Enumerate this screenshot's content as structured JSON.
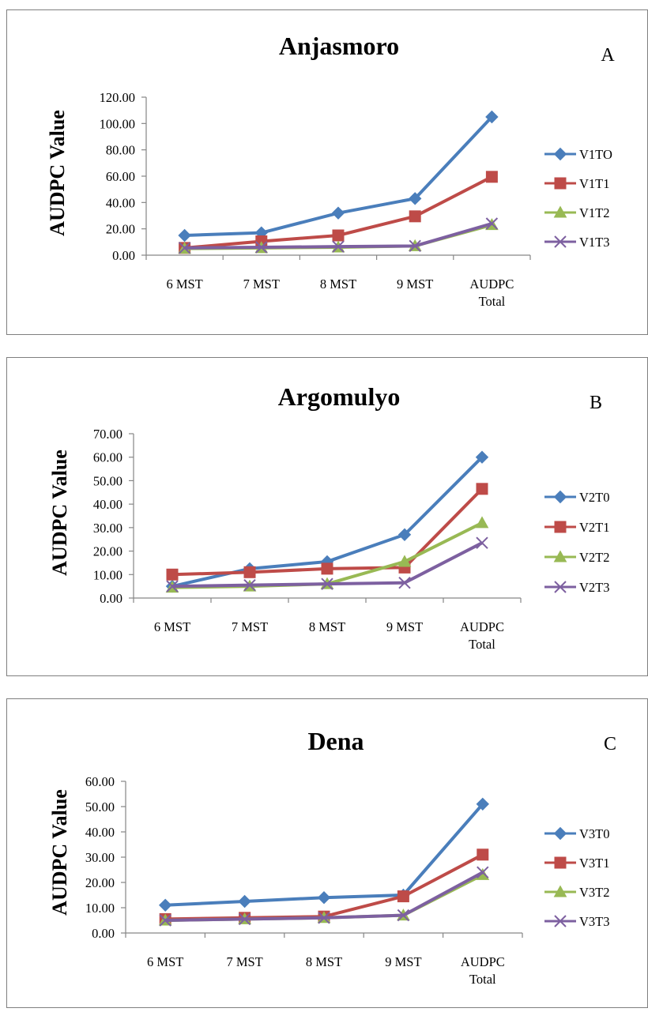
{
  "colors": {
    "T0": "#4a7ebb",
    "T1": "#be4b48",
    "T2": "#98b954",
    "T3": "#7d60a0"
  },
  "chart_data": [
    {
      "type": "line",
      "title": "Anjasmoro",
      "panel_letter": "A",
      "ylabel": "AUDPC Value",
      "xlabel": "",
      "categories": [
        [
          "6 MST"
        ],
        [
          "7 MST"
        ],
        [
          "8 MST"
        ],
        [
          "9 MST"
        ],
        [
          "AUDPC",
          "Total"
        ]
      ],
      "yticks": [
        "0.00",
        "20.00",
        "40.00",
        "60.00",
        "80.00",
        "100.00",
        "120.00"
      ],
      "ylim": [
        0,
        120
      ],
      "grid": false,
      "legend_position": "right",
      "series": [
        {
          "name": "V1TO",
          "marker": "diamond",
          "values": [
            15.0,
            17.0,
            32.0,
            43.0,
            105.0
          ]
        },
        {
          "name": "V1T1",
          "marker": "square",
          "values": [
            5.5,
            10.5,
            15.0,
            29.5,
            59.5
          ]
        },
        {
          "name": "V1T2",
          "marker": "triangle",
          "values": [
            5.0,
            5.5,
            6.0,
            7.0,
            23.0
          ]
        },
        {
          "name": "V1T3",
          "marker": "x",
          "values": [
            5.5,
            6.0,
            6.5,
            7.0,
            24.0
          ]
        }
      ]
    },
    {
      "type": "line",
      "title": "Argomulyo",
      "panel_letter": "B",
      "ylabel": "AUDPC Value",
      "xlabel": "",
      "categories": [
        [
          "6 MST"
        ],
        [
          "7 MST"
        ],
        [
          "8 MST"
        ],
        [
          "9 MST"
        ],
        [
          "AUDPC",
          "Total"
        ]
      ],
      "yticks": [
        "0.00",
        "10.00",
        "20.00",
        "30.00",
        "40.00",
        "50.00",
        "60.00",
        "70.00"
      ],
      "ylim": [
        0,
        70
      ],
      "grid": false,
      "legend_position": "right",
      "series": [
        {
          "name": "V2T0",
          "marker": "diamond",
          "values": [
            5.0,
            12.5,
            15.5,
            27.0,
            60.0
          ]
        },
        {
          "name": "V2T1",
          "marker": "square",
          "values": [
            10.0,
            11.0,
            12.5,
            13.0,
            46.5
          ]
        },
        {
          "name": "V2T2",
          "marker": "triangle",
          "values": [
            4.5,
            5.0,
            6.0,
            15.5,
            32.0
          ]
        },
        {
          "name": "V2T3",
          "marker": "x",
          "values": [
            5.0,
            5.5,
            6.0,
            6.5,
            23.5
          ]
        }
      ]
    },
    {
      "type": "line",
      "title": "Dena",
      "panel_letter": "C",
      "ylabel": "AUDPC Value",
      "xlabel": "",
      "categories": [
        [
          "6 MST"
        ],
        [
          "7 MST"
        ],
        [
          "8 MST"
        ],
        [
          "9 MST"
        ],
        [
          "AUDPC",
          "Total"
        ]
      ],
      "yticks": [
        "0.00",
        "10.00",
        "20.00",
        "30.00",
        "40.00",
        "50.00",
        "60.00"
      ],
      "ylim": [
        0,
        60
      ],
      "grid": false,
      "legend_position": "right",
      "series": [
        {
          "name": "V3T0",
          "marker": "diamond",
          "values": [
            11.0,
            12.5,
            14.0,
            15.0,
            51.0
          ]
        },
        {
          "name": "V3T1",
          "marker": "square",
          "values": [
            5.5,
            6.0,
            6.5,
            14.5,
            31.0
          ]
        },
        {
          "name": "V3T2",
          "marker": "triangle",
          "values": [
            5.0,
            5.5,
            6.0,
            7.0,
            23.0
          ]
        },
        {
          "name": "V3T3",
          "marker": "x",
          "values": [
            5.0,
            5.5,
            6.0,
            7.0,
            24.0
          ]
        }
      ]
    }
  ]
}
